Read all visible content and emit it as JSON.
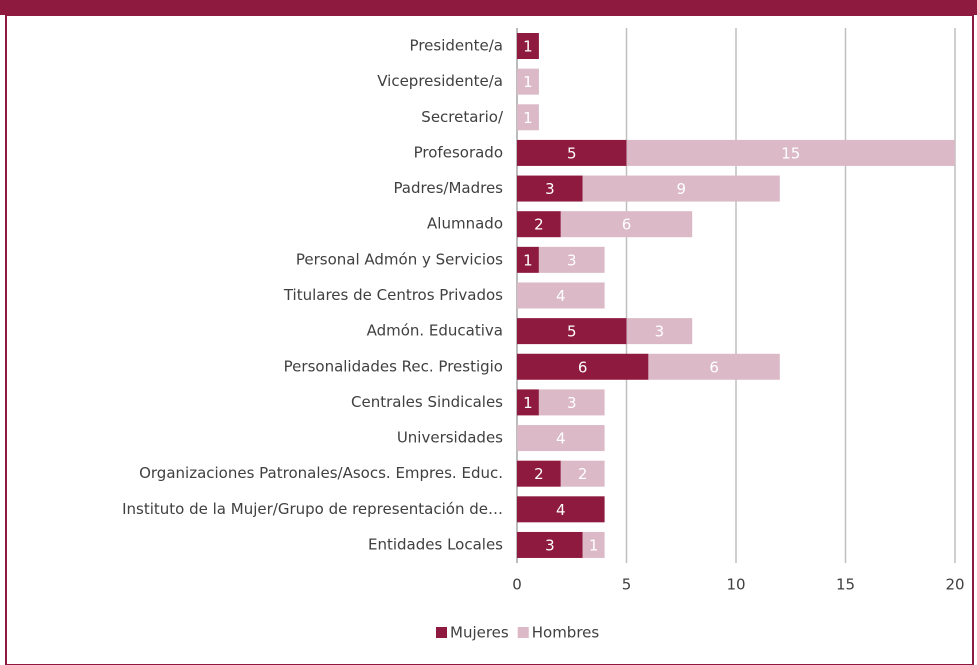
{
  "chart_data": {
    "type": "stacked-barh",
    "categories": [
      "Presidente/a",
      "Vicepresidente/a",
      "Secretario/",
      "Profesorado",
      "Padres/Madres",
      "Alumnado",
      "Personal Admón y Servicios",
      "Titulares de Centros Privados",
      "Admón. Educativa",
      "Personalidades Rec. Prestigio",
      "Centrales Sindicales",
      "Universidades",
      "Organizaciones Patronales/Asocs. Empres. Educ.",
      "Instituto de la Mujer/Grupo de representación de…",
      "Entidades Locales"
    ],
    "series": [
      {
        "name": "Mujeres",
        "color": "#8e1a3f",
        "values": [
          1,
          0,
          0,
          5,
          3,
          2,
          1,
          0,
          5,
          6,
          1,
          0,
          2,
          4,
          3
        ]
      },
      {
        "name": "Hombres",
        "color": "#dbb9c6",
        "values": [
          0,
          1,
          1,
          15,
          9,
          6,
          3,
          4,
          3,
          6,
          3,
          4,
          2,
          0,
          1
        ]
      }
    ],
    "xlim": [
      0,
      20
    ],
    "xticks": [
      0,
      5,
      10,
      15,
      20
    ],
    "grid": true,
    "legend": "bottom"
  }
}
